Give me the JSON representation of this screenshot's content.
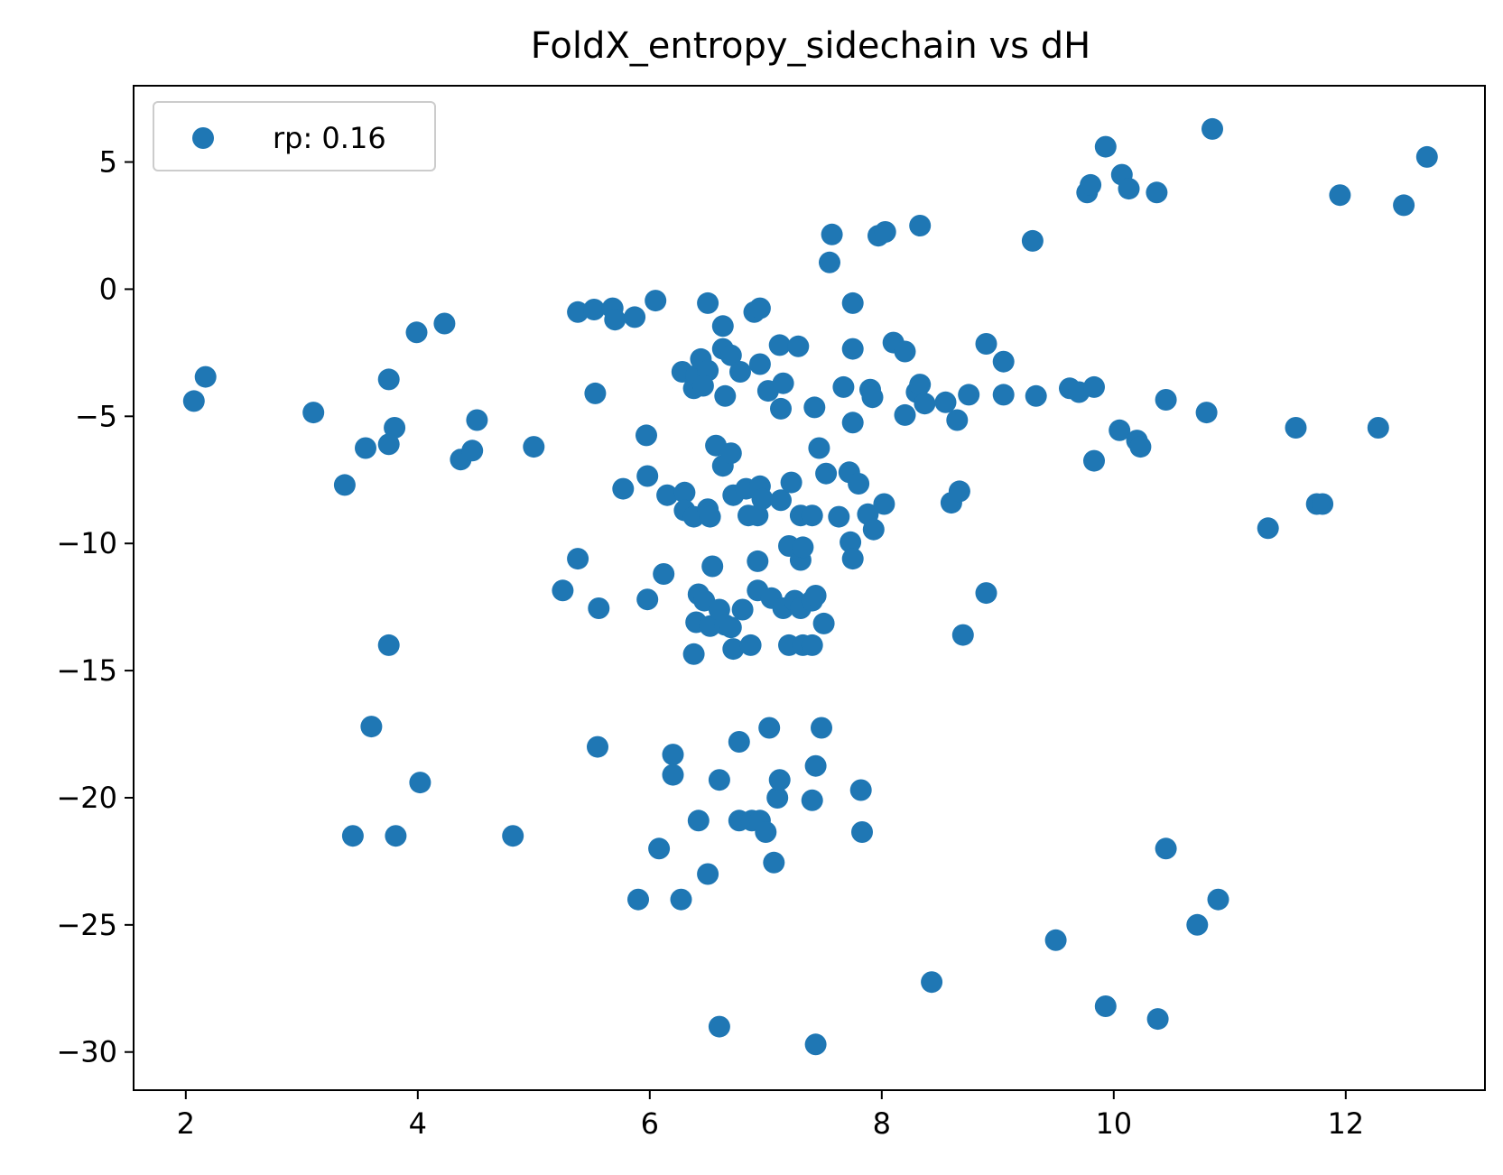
{
  "chart_data": {
    "type": "scatter",
    "title": "FoldX_entropy_sidechain vs dH",
    "xlabel": "",
    "ylabel": "",
    "xlim": [
      1.55,
      13.2
    ],
    "ylim": [
      -31.5,
      8.0
    ],
    "xticks": [
      2,
      4,
      6,
      8,
      10,
      12
    ],
    "xtick_labels": [
      "2",
      "4",
      "6",
      "8",
      "10",
      "12"
    ],
    "yticks": [
      5,
      0,
      -5,
      -10,
      -15,
      -20,
      -25,
      -30
    ],
    "ytick_labels": [
      "5",
      "0",
      "−5",
      "−10",
      "−15",
      "−20",
      "−25",
      "−30"
    ],
    "grid": false,
    "legend": {
      "position": "top-left"
    },
    "series": [
      {
        "name": "rp: 0.16",
        "color": "#1f77b4",
        "points": [
          [
            2.07,
            -4.4
          ],
          [
            2.17,
            -3.45
          ],
          [
            3.1,
            -4.85
          ],
          [
            3.37,
            -7.7
          ],
          [
            3.55,
            -6.25
          ],
          [
            3.75,
            -3.55
          ],
          [
            3.8,
            -5.45
          ],
          [
            3.75,
            -6.1
          ],
          [
            3.99,
            -1.7
          ],
          [
            4.23,
            -1.35
          ],
          [
            4.37,
            -6.7
          ],
          [
            4.47,
            -6.35
          ],
          [
            4.51,
            -5.15
          ],
          [
            5.0,
            -6.2
          ],
          [
            3.6,
            -17.2
          ],
          [
            4.02,
            -19.4
          ],
          [
            3.44,
            -21.5
          ],
          [
            3.81,
            -21.5
          ],
          [
            4.82,
            -21.5
          ],
          [
            3.75,
            -14.0
          ],
          [
            5.38,
            -0.9
          ],
          [
            5.52,
            -0.8
          ],
          [
            5.68,
            -0.75
          ],
          [
            5.7,
            -1.2
          ],
          [
            5.87,
            -1.1
          ],
          [
            6.05,
            -0.45
          ],
          [
            5.53,
            -4.1
          ],
          [
            5.97,
            -5.75
          ],
          [
            5.98,
            -7.35
          ],
          [
            5.77,
            -7.85
          ],
          [
            5.38,
            -10.6
          ],
          [
            5.25,
            -11.85
          ],
          [
            5.56,
            -12.55
          ],
          [
            5.98,
            -12.2
          ],
          [
            6.12,
            -11.2
          ],
          [
            6.15,
            -8.1
          ],
          [
            6.3,
            -8.0
          ],
          [
            6.3,
            -8.7
          ],
          [
            6.38,
            -8.95
          ],
          [
            6.5,
            -8.65
          ],
          [
            6.52,
            -8.95
          ],
          [
            6.28,
            -3.25
          ],
          [
            6.38,
            -3.9
          ],
          [
            6.4,
            -3.4
          ],
          [
            6.44,
            -2.75
          ],
          [
            6.5,
            -0.55
          ],
          [
            6.5,
            -3.2
          ],
          [
            6.46,
            -3.8
          ],
          [
            6.63,
            -1.45
          ],
          [
            6.63,
            -2.35
          ],
          [
            6.65,
            -4.2
          ],
          [
            6.7,
            -2.6
          ],
          [
            6.78,
            -3.25
          ],
          [
            6.9,
            -0.9
          ],
          [
            6.95,
            -0.75
          ],
          [
            6.95,
            -2.95
          ],
          [
            6.57,
            -6.15
          ],
          [
            6.63,
            -6.95
          ],
          [
            6.7,
            -6.45
          ],
          [
            6.72,
            -8.1
          ],
          [
            6.83,
            -7.85
          ],
          [
            6.85,
            -8.9
          ],
          [
            6.93,
            -8.9
          ],
          [
            6.95,
            -7.75
          ],
          [
            6.97,
            -8.25
          ],
          [
            6.54,
            -10.9
          ],
          [
            6.93,
            -10.7
          ],
          [
            6.93,
            -11.85
          ],
          [
            6.42,
            -12.0
          ],
          [
            6.47,
            -12.25
          ],
          [
            6.4,
            -13.1
          ],
          [
            6.52,
            -13.25
          ],
          [
            6.6,
            -12.6
          ],
          [
            6.65,
            -13.2
          ],
          [
            6.7,
            -13.3
          ],
          [
            6.72,
            -14.15
          ],
          [
            6.8,
            -12.6
          ],
          [
            6.87,
            -14.0
          ],
          [
            6.38,
            -14.35
          ],
          [
            7.02,
            -4.0
          ],
          [
            7.12,
            -2.2
          ],
          [
            7.13,
            -4.7
          ],
          [
            7.15,
            -3.7
          ],
          [
            7.28,
            -2.25
          ],
          [
            7.13,
            -8.3
          ],
          [
            7.22,
            -7.6
          ],
          [
            7.3,
            -8.9
          ],
          [
            7.4,
            -8.9
          ],
          [
            7.2,
            -10.1
          ],
          [
            7.3,
            -10.65
          ],
          [
            7.32,
            -10.15
          ],
          [
            7.05,
            -12.15
          ],
          [
            7.15,
            -12.55
          ],
          [
            7.25,
            -12.25
          ],
          [
            7.3,
            -12.55
          ],
          [
            7.4,
            -12.25
          ],
          [
            7.43,
            -12.05
          ],
          [
            7.5,
            -13.15
          ],
          [
            7.2,
            -14.0
          ],
          [
            7.32,
            -14.0
          ],
          [
            7.4,
            -14.0
          ],
          [
            7.42,
            -4.65
          ],
          [
            7.46,
            -6.25
          ],
          [
            7.52,
            -7.25
          ],
          [
            7.63,
            -8.95
          ],
          [
            7.55,
            1.05
          ],
          [
            7.57,
            2.15
          ],
          [
            7.67,
            -3.85
          ],
          [
            7.72,
            -7.2
          ],
          [
            7.75,
            -5.25
          ],
          [
            7.75,
            -0.55
          ],
          [
            7.75,
            -2.35
          ],
          [
            7.8,
            -7.65
          ],
          [
            7.73,
            -9.95
          ],
          [
            7.75,
            -10.6
          ],
          [
            7.88,
            -8.85
          ],
          [
            7.9,
            -3.95
          ],
          [
            7.92,
            -4.25
          ],
          [
            7.93,
            -9.45
          ],
          [
            8.02,
            -8.45
          ],
          [
            7.97,
            2.1
          ],
          [
            8.03,
            2.25
          ],
          [
            8.1,
            -2.1
          ],
          [
            8.2,
            -2.45
          ],
          [
            8.2,
            -4.95
          ],
          [
            8.3,
            -4.05
          ],
          [
            8.33,
            -3.75
          ],
          [
            8.37,
            -4.5
          ],
          [
            8.33,
            2.5
          ],
          [
            8.55,
            -4.45
          ],
          [
            8.6,
            -8.4
          ],
          [
            8.65,
            -5.15
          ],
          [
            8.67,
            -7.95
          ],
          [
            8.75,
            -4.15
          ],
          [
            8.7,
            -13.6
          ],
          [
            8.9,
            -11.95
          ],
          [
            8.9,
            -2.15
          ],
          [
            9.05,
            -2.85
          ],
          [
            9.05,
            -4.15
          ],
          [
            9.3,
            1.9
          ],
          [
            9.33,
            -4.2
          ],
          [
            9.62,
            -3.9
          ],
          [
            9.7,
            -4.05
          ],
          [
            9.77,
            3.8
          ],
          [
            9.8,
            4.1
          ],
          [
            9.83,
            -3.85
          ],
          [
            9.83,
            -6.75
          ],
          [
            9.93,
            5.6
          ],
          [
            10.05,
            -5.55
          ],
          [
            10.07,
            4.5
          ],
          [
            10.13,
            3.95
          ],
          [
            10.2,
            -5.95
          ],
          [
            10.23,
            -6.2
          ],
          [
            10.37,
            3.8
          ],
          [
            10.45,
            -4.35
          ],
          [
            10.8,
            -4.85
          ],
          [
            10.85,
            6.3
          ],
          [
            11.33,
            -9.4
          ],
          [
            11.57,
            -5.45
          ],
          [
            11.75,
            -8.45
          ],
          [
            11.8,
            -8.45
          ],
          [
            11.95,
            3.7
          ],
          [
            12.28,
            -5.45
          ],
          [
            12.5,
            3.3
          ],
          [
            12.7,
            5.2
          ],
          [
            5.55,
            -18.0
          ],
          [
            6.2,
            -18.3
          ],
          [
            6.2,
            -19.1
          ],
          [
            6.6,
            -19.3
          ],
          [
            6.77,
            -17.8
          ],
          [
            6.42,
            -20.9
          ],
          [
            6.77,
            -20.9
          ],
          [
            6.88,
            -20.9
          ],
          [
            6.95,
            -20.9
          ],
          [
            7.0,
            -21.35
          ],
          [
            7.03,
            -17.25
          ],
          [
            7.1,
            -20.0
          ],
          [
            7.12,
            -19.3
          ],
          [
            7.07,
            -22.55
          ],
          [
            7.4,
            -20.1
          ],
          [
            7.43,
            -18.75
          ],
          [
            7.48,
            -17.25
          ],
          [
            7.82,
            -19.7
          ],
          [
            7.83,
            -21.35
          ],
          [
            6.08,
            -22.0
          ],
          [
            6.5,
            -23.0
          ],
          [
            5.9,
            -24.0
          ],
          [
            6.27,
            -24.0
          ],
          [
            6.6,
            -29.0
          ],
          [
            7.43,
            -29.7
          ],
          [
            8.43,
            -27.25
          ],
          [
            9.5,
            -25.6
          ],
          [
            9.93,
            -28.2
          ],
          [
            10.38,
            -28.7
          ],
          [
            10.45,
            -22.0
          ],
          [
            10.72,
            -25.0
          ],
          [
            10.9,
            -24.0
          ]
        ]
      }
    ]
  }
}
